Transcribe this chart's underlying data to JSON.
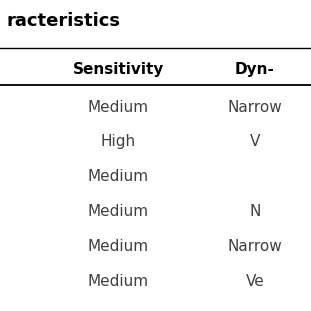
{
  "title": "racteristics",
  "col_headers": [
    "Sensitivity",
    "Dyn-"
  ],
  "rows": [
    [
      "Medium",
      "Narrow"
    ],
    [
      "High",
      "V"
    ],
    [
      "Medium",
      ""
    ],
    [
      "Medium",
      "N"
    ],
    [
      "Medium",
      "Narrow"
    ],
    [
      "Medium",
      "Ve"
    ]
  ],
  "background_color": "#ffffff",
  "header_line_color": "#000000",
  "title_color": "#000000",
  "text_color": "#404040",
  "header_text_color": "#000000",
  "title_fontsize": 13,
  "header_fontsize": 11,
  "row_fontsize": 11,
  "fig_width": 3.11,
  "fig_height": 3.11,
  "dpi": 100
}
